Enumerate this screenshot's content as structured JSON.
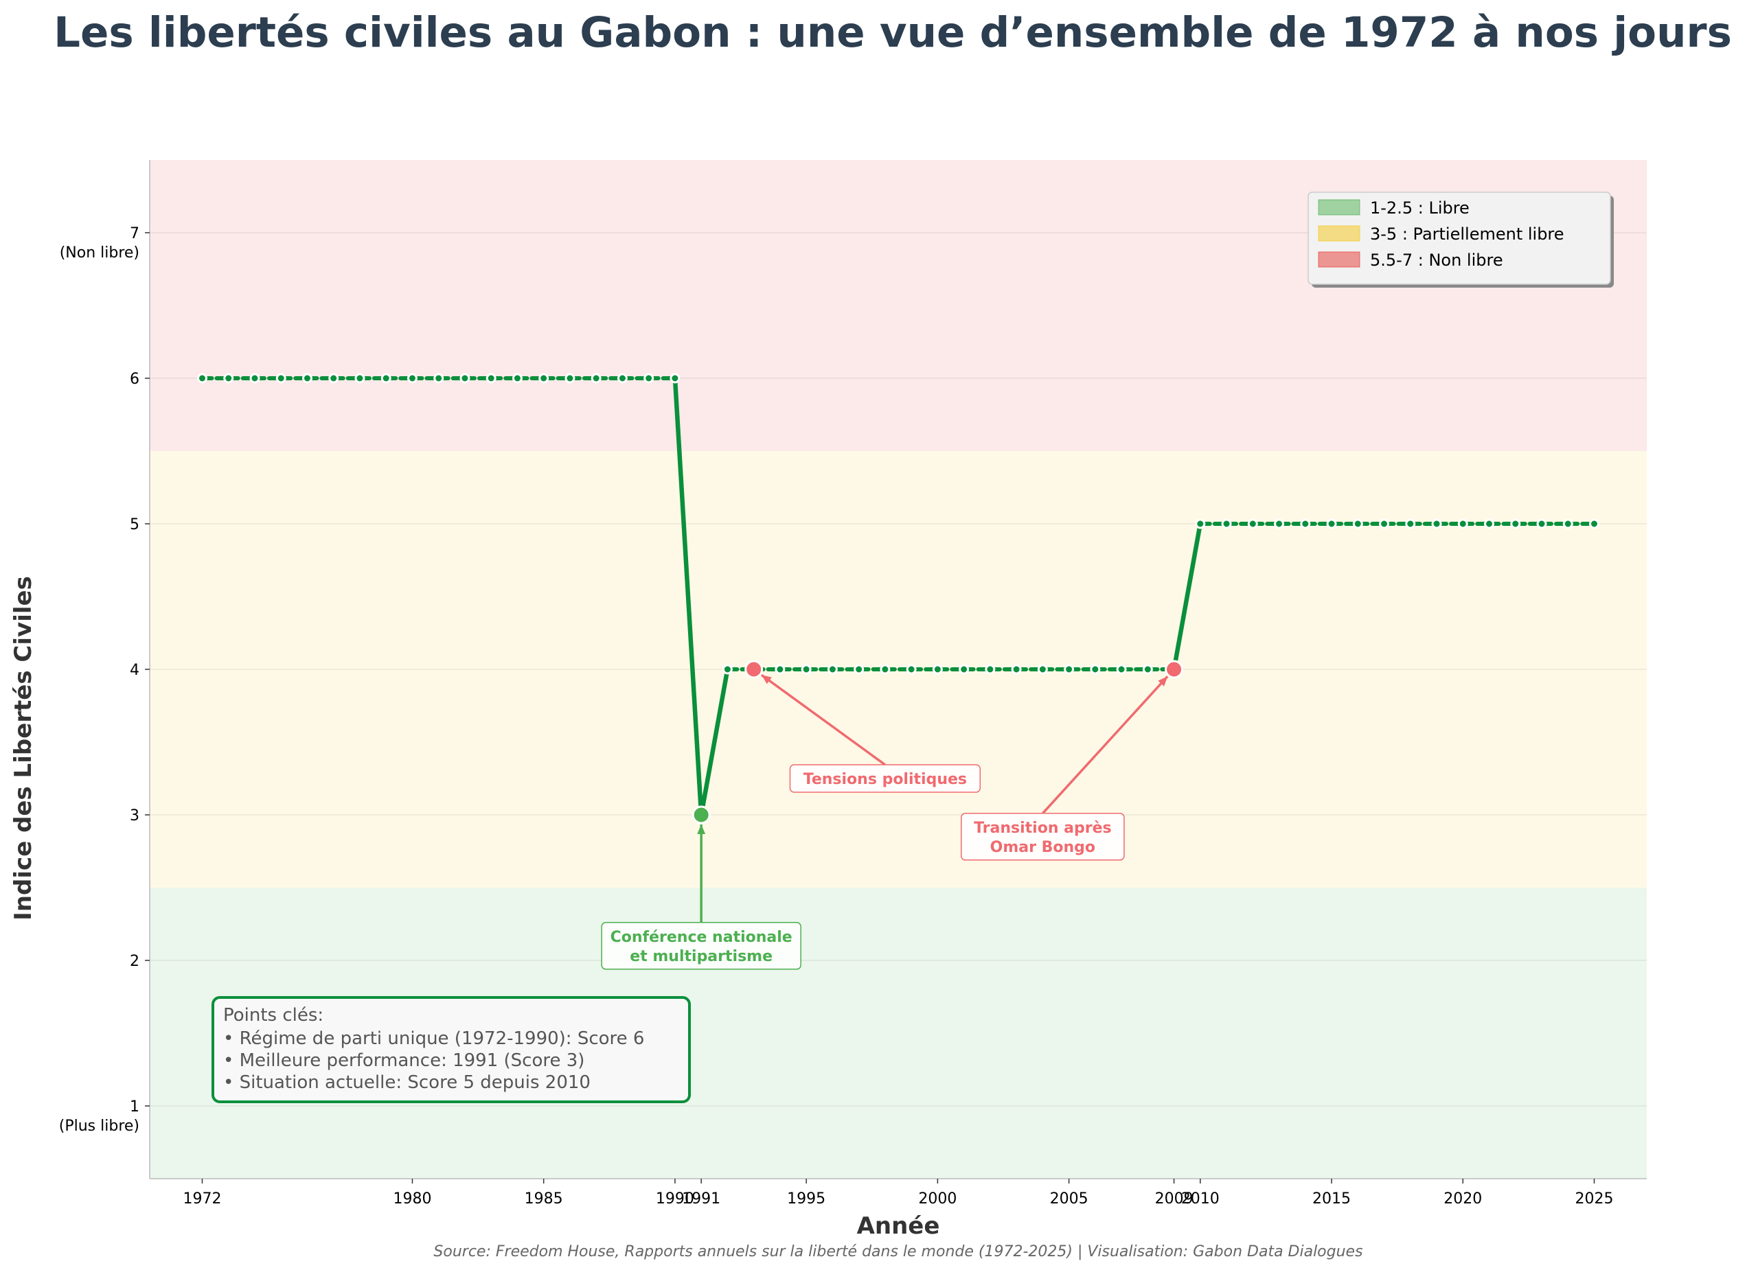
{
  "chart_data": {
    "type": "line",
    "title": "Les libertés civiles au Gabon : une vue d’ensemble de 1972 à nos jours",
    "xlabel": "Année",
    "ylabel": "Indice des Libertés Civiles",
    "xlim": [
      1970,
      2027
    ],
    "ylim": [
      0.5,
      7.5
    ],
    "x_ticks": [
      {
        "value": 1972,
        "label": "1972"
      },
      {
        "value": 1980,
        "label": "1980"
      },
      {
        "value": 1985,
        "label": "1985"
      },
      {
        "value": 1990,
        "label": "1990"
      },
      {
        "value": 1991,
        "label": "1991"
      },
      {
        "value": 1995,
        "label": "1995"
      },
      {
        "value": 2000,
        "label": "2000"
      },
      {
        "value": 2005,
        "label": "2005"
      },
      {
        "value": 2009,
        "label": "2009"
      },
      {
        "value": 2010,
        "label": "2010"
      },
      {
        "value": 2015,
        "label": "2015"
      },
      {
        "value": 2020,
        "label": "2020"
      },
      {
        "value": 2025,
        "label": "2025"
      }
    ],
    "y_ticks": [
      {
        "value": 1,
        "label": "1",
        "sublabel": "(Plus libre)"
      },
      {
        "value": 2,
        "label": "2",
        "sublabel": ""
      },
      {
        "value": 3,
        "label": "3",
        "sublabel": ""
      },
      {
        "value": 4,
        "label": "4",
        "sublabel": ""
      },
      {
        "value": 5,
        "label": "5",
        "sublabel": ""
      },
      {
        "value": 6,
        "label": "6",
        "sublabel": ""
      },
      {
        "value": 7,
        "label": "7",
        "sublabel": "(Non libre)"
      }
    ],
    "grid": true,
    "series": [
      {
        "color": "#0a8f3c",
        "x": [
          1972,
          1973,
          1974,
          1975,
          1976,
          1977,
          1978,
          1979,
          1980,
          1981,
          1982,
          1983,
          1984,
          1985,
          1986,
          1987,
          1988,
          1989,
          1990,
          1991,
          1992,
          1993,
          1994,
          1995,
          1996,
          1997,
          1998,
          1999,
          2000,
          2001,
          2002,
          2003,
          2004,
          2005,
          2006,
          2007,
          2008,
          2009,
          2010,
          2011,
          2012,
          2013,
          2014,
          2015,
          2016,
          2017,
          2018,
          2019,
          2020,
          2021,
          2022,
          2023,
          2024,
          2025
        ],
        "values": [
          6,
          6,
          6,
          6,
          6,
          6,
          6,
          6,
          6,
          6,
          6,
          6,
          6,
          6,
          6,
          6,
          6,
          6,
          6,
          3,
          4,
          4,
          4,
          4,
          4,
          4,
          4,
          4,
          4,
          4,
          4,
          4,
          4,
          4,
          4,
          4,
          4,
          4,
          5,
          5,
          5,
          5,
          5,
          5,
          5,
          5,
          5,
          5,
          5,
          5,
          5,
          5,
          5,
          5
        ]
      }
    ],
    "bands": [
      {
        "from": 0.5,
        "to": 2.5,
        "color": "#4caf50",
        "label": "1-2.5 : Libre"
      },
      {
        "from": 2.5,
        "to": 5.5,
        "color": "#f5c518",
        "label": "3-5 : Partiellement libre"
      },
      {
        "from": 5.5,
        "to": 7.5,
        "color": "#e53935",
        "label": "5.5-7 : Non libre"
      }
    ],
    "legend_position": "top-right",
    "highlight_points": [
      {
        "x": 1991,
        "y": 3,
        "color": "#4caf50"
      },
      {
        "x": 1993,
        "y": 4,
        "color": "#f06a6f"
      },
      {
        "x": 2009,
        "y": 4,
        "color": "#f06a6f"
      }
    ],
    "annotations": [
      {
        "lines": [
          "Conférence nationale",
          "et multipartisme"
        ],
        "point_x": 1991,
        "point_y": 3,
        "text_x": 1991,
        "text_y": 2.1,
        "color": "#4caf50"
      },
      {
        "lines": [
          "Tensions politiques"
        ],
        "point_x": 1993,
        "point_y": 4,
        "text_x": 1998,
        "text_y": 3.25,
        "color": "#f06a6f"
      },
      {
        "lines": [
          "Transition après",
          "Omar Bongo"
        ],
        "point_x": 2009,
        "point_y": 4,
        "text_x": 2004,
        "text_y": 2.85,
        "color": "#f06a6f"
      }
    ],
    "key_points": {
      "title": "Points clés:",
      "items": [
        "• Régime de parti unique (1972-1990): Score 6",
        "• Meilleure performance: 1991 (Score 3)",
        "• Situation actuelle: Score 5 depuis 2010"
      ]
    },
    "source": "Source: Freedom House, Rapports annuels sur la liberté dans le monde (1972-2025) | Visualisation: Gabon Data Dialogues"
  }
}
